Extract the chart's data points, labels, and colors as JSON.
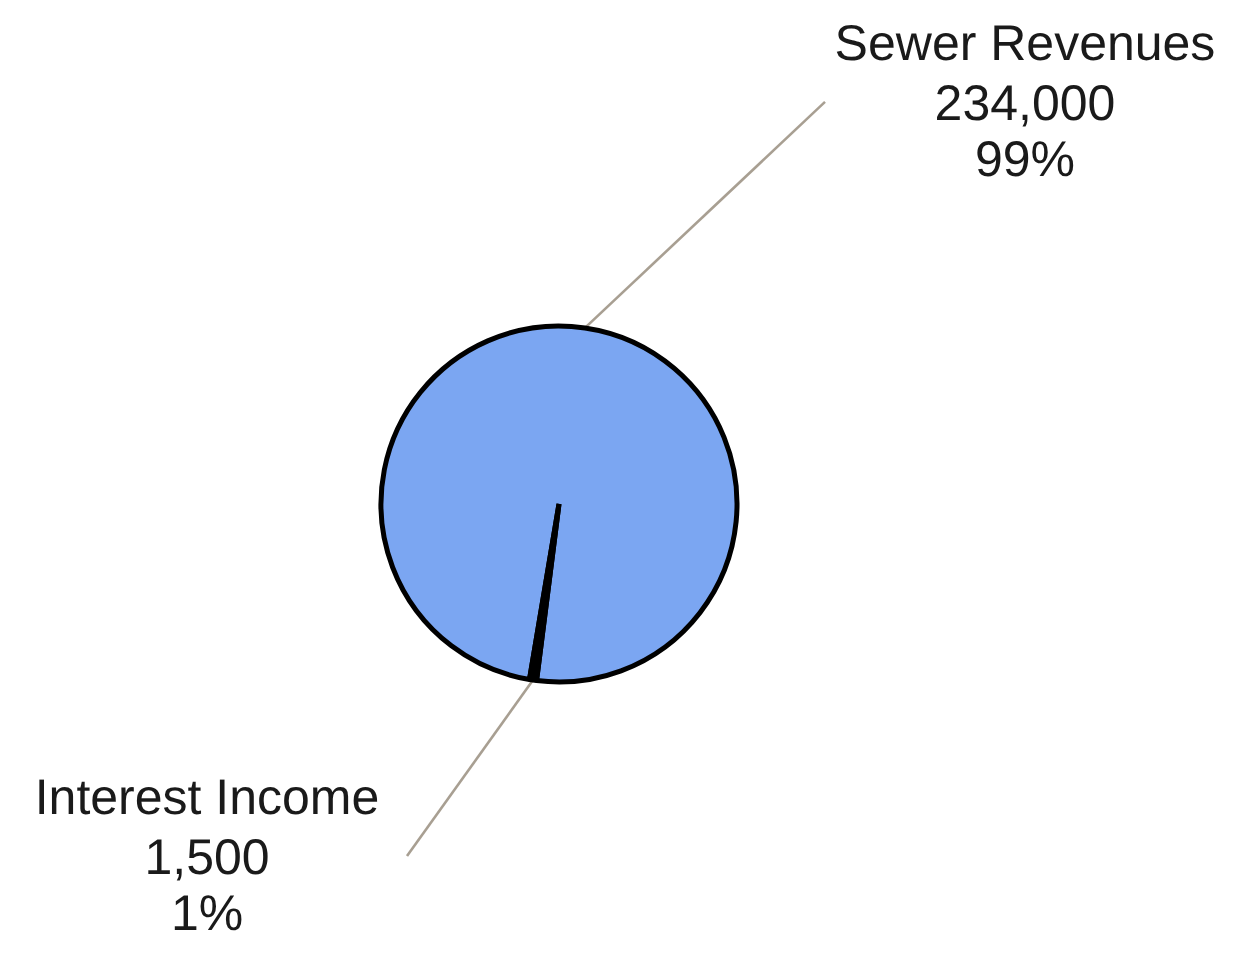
{
  "chart_data": {
    "type": "pie",
    "categories": [
      "Sewer Revenues",
      "Interest Income"
    ],
    "values": [
      234000,
      1500
    ],
    "colors": [
      "#7ba6f2",
      "#000000"
    ],
    "value_labels": [
      "234,000\n99%",
      "1,500\n1%"
    ]
  }
}
